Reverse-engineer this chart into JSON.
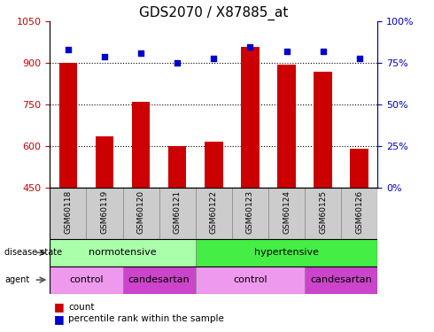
{
  "title": "GDS2070 / X87885_at",
  "samples": [
    "GSM60118",
    "GSM60119",
    "GSM60120",
    "GSM60121",
    "GSM60122",
    "GSM60123",
    "GSM60124",
    "GSM60125",
    "GSM60126"
  ],
  "count_values": [
    900,
    635,
    760,
    600,
    615,
    960,
    895,
    870,
    590
  ],
  "percentile_values": [
    83,
    79,
    81,
    75,
    78,
    85,
    82,
    82,
    78
  ],
  "ylim_left": [
    450,
    1050
  ],
  "ylim_right": [
    0,
    100
  ],
  "yticks_left": [
    450,
    600,
    750,
    900,
    1050
  ],
  "yticks_right": [
    0,
    25,
    50,
    75,
    100
  ],
  "bar_color": "#cc0000",
  "dot_color": "#0000cc",
  "disease_state_groups": [
    {
      "label": "normotensive",
      "start": 0,
      "end": 4,
      "color": "#aaffaa"
    },
    {
      "label": "hypertensive",
      "start": 4,
      "end": 9,
      "color": "#44ee44"
    }
  ],
  "agent_groups": [
    {
      "label": "control",
      "start": 0,
      "end": 2,
      "color": "#ee99ee"
    },
    {
      "label": "candesartan",
      "start": 2,
      "end": 4,
      "color": "#cc44cc"
    },
    {
      "label": "control",
      "start": 4,
      "end": 7,
      "color": "#ee99ee"
    },
    {
      "label": "candesartan",
      "start": 7,
      "end": 9,
      "color": "#cc44cc"
    }
  ],
  "legend_items": [
    {
      "label": "count",
      "color": "#cc0000"
    },
    {
      "label": "percentile rank within the sample",
      "color": "#0000cc"
    }
  ],
  "bar_width": 0.5,
  "ylabel_left_color": "#cc0000",
  "ylabel_right_color": "#0000cc",
  "title_fontsize": 11,
  "label_row_color": "#cccccc",
  "border_color": "#888888"
}
